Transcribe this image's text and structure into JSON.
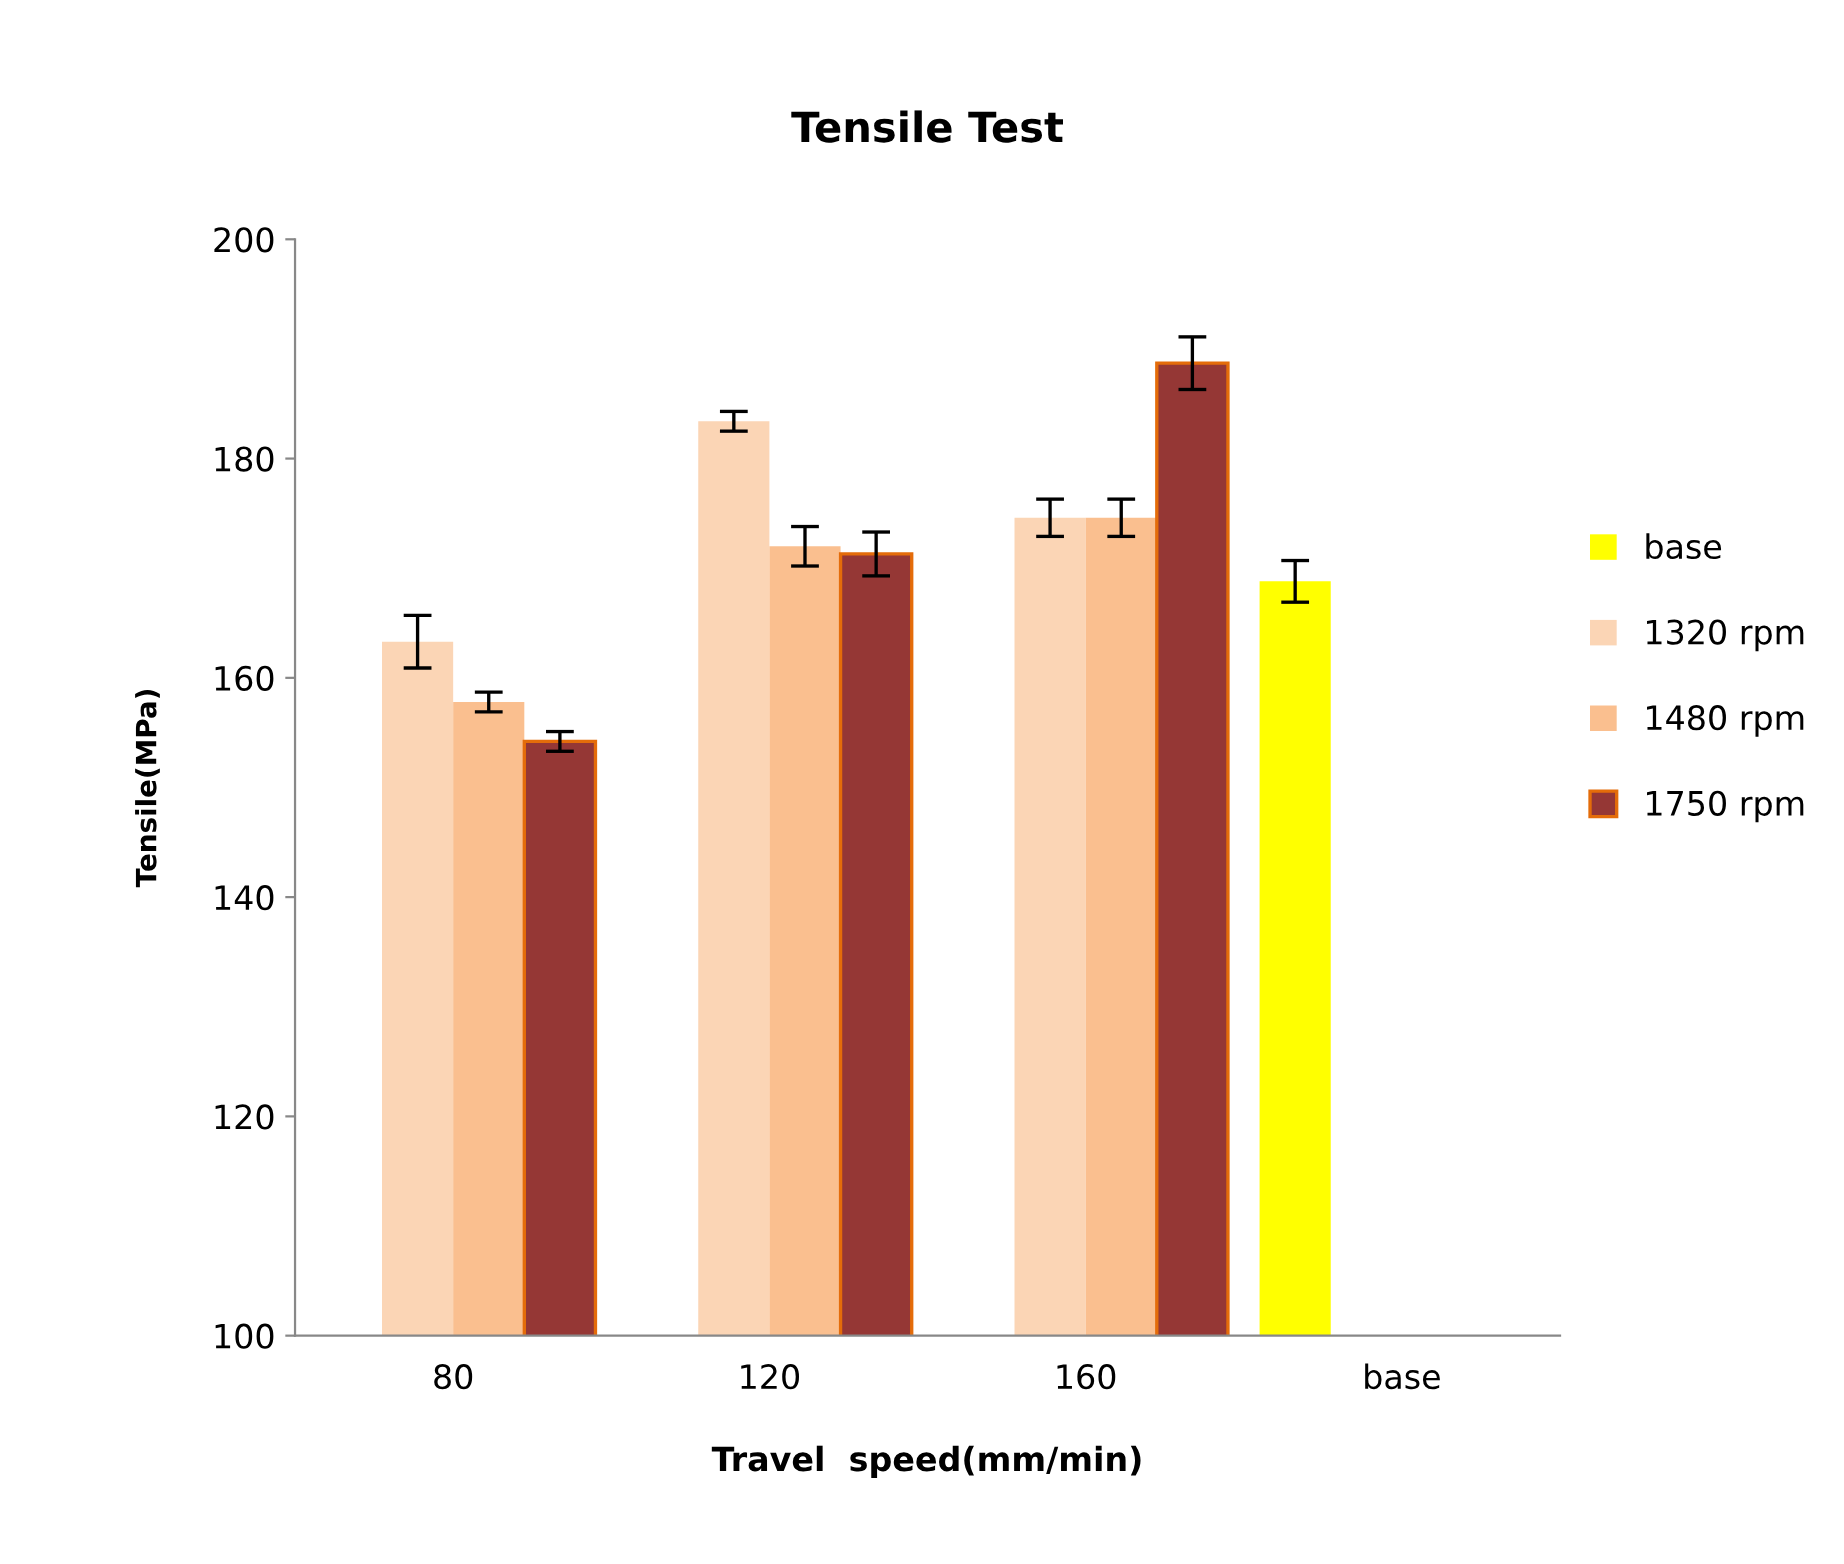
{
  "chart_data": {
    "type": "bar",
    "title": "Tensile Test",
    "xlabel": "Travel  speed(mm/min)",
    "ylabel": "Tensile(MPa)",
    "categories": [
      "80",
      "120",
      "160",
      "base"
    ],
    "series": [
      {
        "name": "base",
        "color": "#ffff00",
        "values": [
          null,
          null,
          null,
          168.8
        ],
        "errors": [
          null,
          null,
          null,
          1.9
        ]
      },
      {
        "name": "1320 rpm",
        "color": "#fbd5b5",
        "values": [
          163.3,
          183.4,
          174.6,
          null
        ],
        "errors": [
          2.4,
          0.9,
          1.7,
          null
        ]
      },
      {
        "name": "1480 rpm",
        "color": "#fabf8f",
        "values": [
          157.8,
          172.0,
          174.6,
          null
        ],
        "errors": [
          0.9,
          1.8,
          1.7,
          null
        ]
      },
      {
        "name": "1750 rpm",
        "color": "#953735",
        "values": [
          154.2,
          171.3,
          188.7,
          null
        ],
        "errors": [
          0.9,
          2.0,
          2.4,
          null
        ]
      }
    ],
    "ylim": [
      100,
      200
    ],
    "yticks": [
      100,
      120,
      140,
      160,
      180,
      200
    ],
    "grid": false,
    "legend": "right"
  }
}
